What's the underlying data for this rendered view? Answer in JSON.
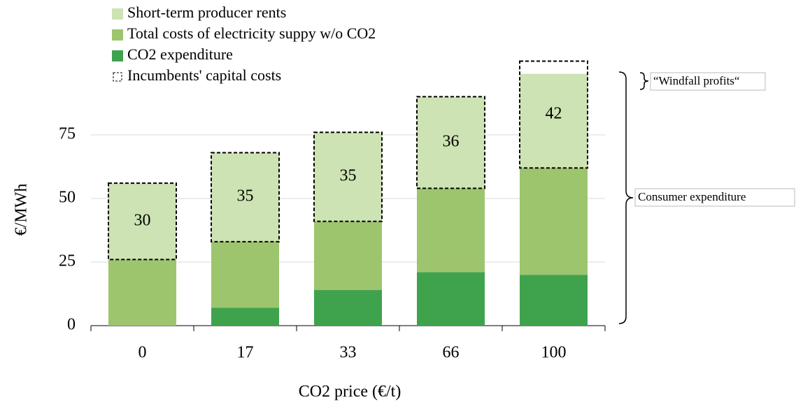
{
  "chart_data": {
    "type": "stacked_bar",
    "categories": [
      "0",
      "17",
      "33",
      "66",
      "100"
    ],
    "series": [
      {
        "name": "CO2 expenditure",
        "color": "#3fa34d",
        "values": [
          0,
          7,
          14,
          21,
          20
        ]
      },
      {
        "name": "Total costs of electricity suppy w/o CO2",
        "color": "#9dc56e",
        "values": [
          26,
          26,
          27,
          33,
          42
        ]
      },
      {
        "name": "Short-term producer rents",
        "color": "#cde3b3",
        "values": [
          30,
          35,
          35,
          36,
          37
        ]
      }
    ],
    "boxes": {
      "name": "Incumbents' capital costs",
      "values": [
        30,
        35,
        35,
        36,
        42
      ]
    },
    "xlabel": "CO2 price (€/t)",
    "ylabel": "€/MWh",
    "ylim": [
      0,
      100
    ],
    "yticks": [
      0,
      25,
      50,
      75
    ],
    "grid": true,
    "annotations": [
      "“Windfall profits“",
      "Consumer expenditure"
    ]
  }
}
